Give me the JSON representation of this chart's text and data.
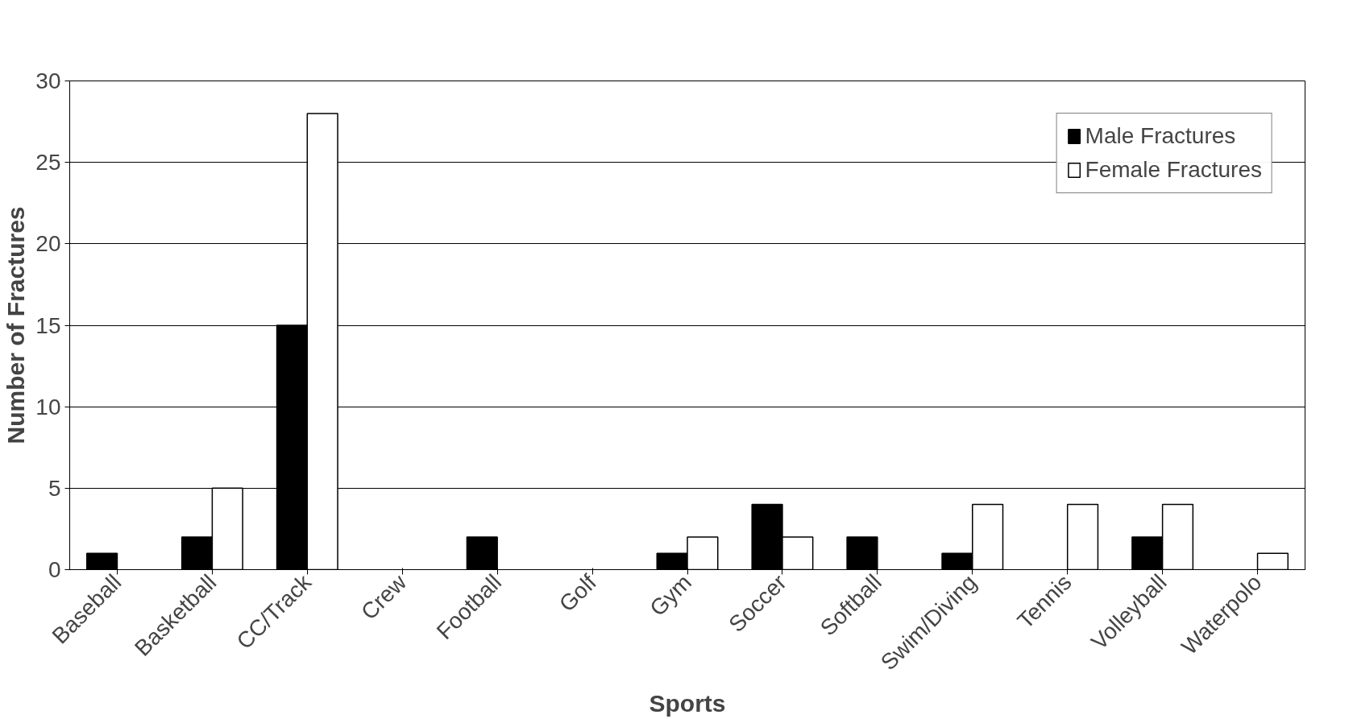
{
  "chart_data": {
    "type": "bar",
    "xlabel": "Sports",
    "ylabel": "Number of Fractures",
    "categories": [
      "Baseball",
      "Basketball",
      "CC/Track",
      "Crew",
      "Football",
      "Golf",
      "Gym",
      "Soccer",
      "Softball",
      "Swim/Diving",
      "Tennis",
      "Volleyball",
      "Waterpolo"
    ],
    "series": [
      {
        "name": "Male Fractures",
        "color": "#000000",
        "values": [
          1,
          2,
          15,
          0,
          2,
          0,
          1,
          4,
          2,
          1,
          0,
          2,
          0
        ]
      },
      {
        "name": "Female Fractures",
        "color": "#ffffff",
        "values": [
          0,
          5,
          28,
          0,
          0,
          0,
          2,
          2,
          0,
          4,
          4,
          4,
          1
        ]
      }
    ],
    "ylim": [
      0,
      30
    ],
    "yticks": [
      0,
      5,
      10,
      15,
      20,
      25,
      30
    ],
    "grid": "y",
    "legend": "top right"
  }
}
